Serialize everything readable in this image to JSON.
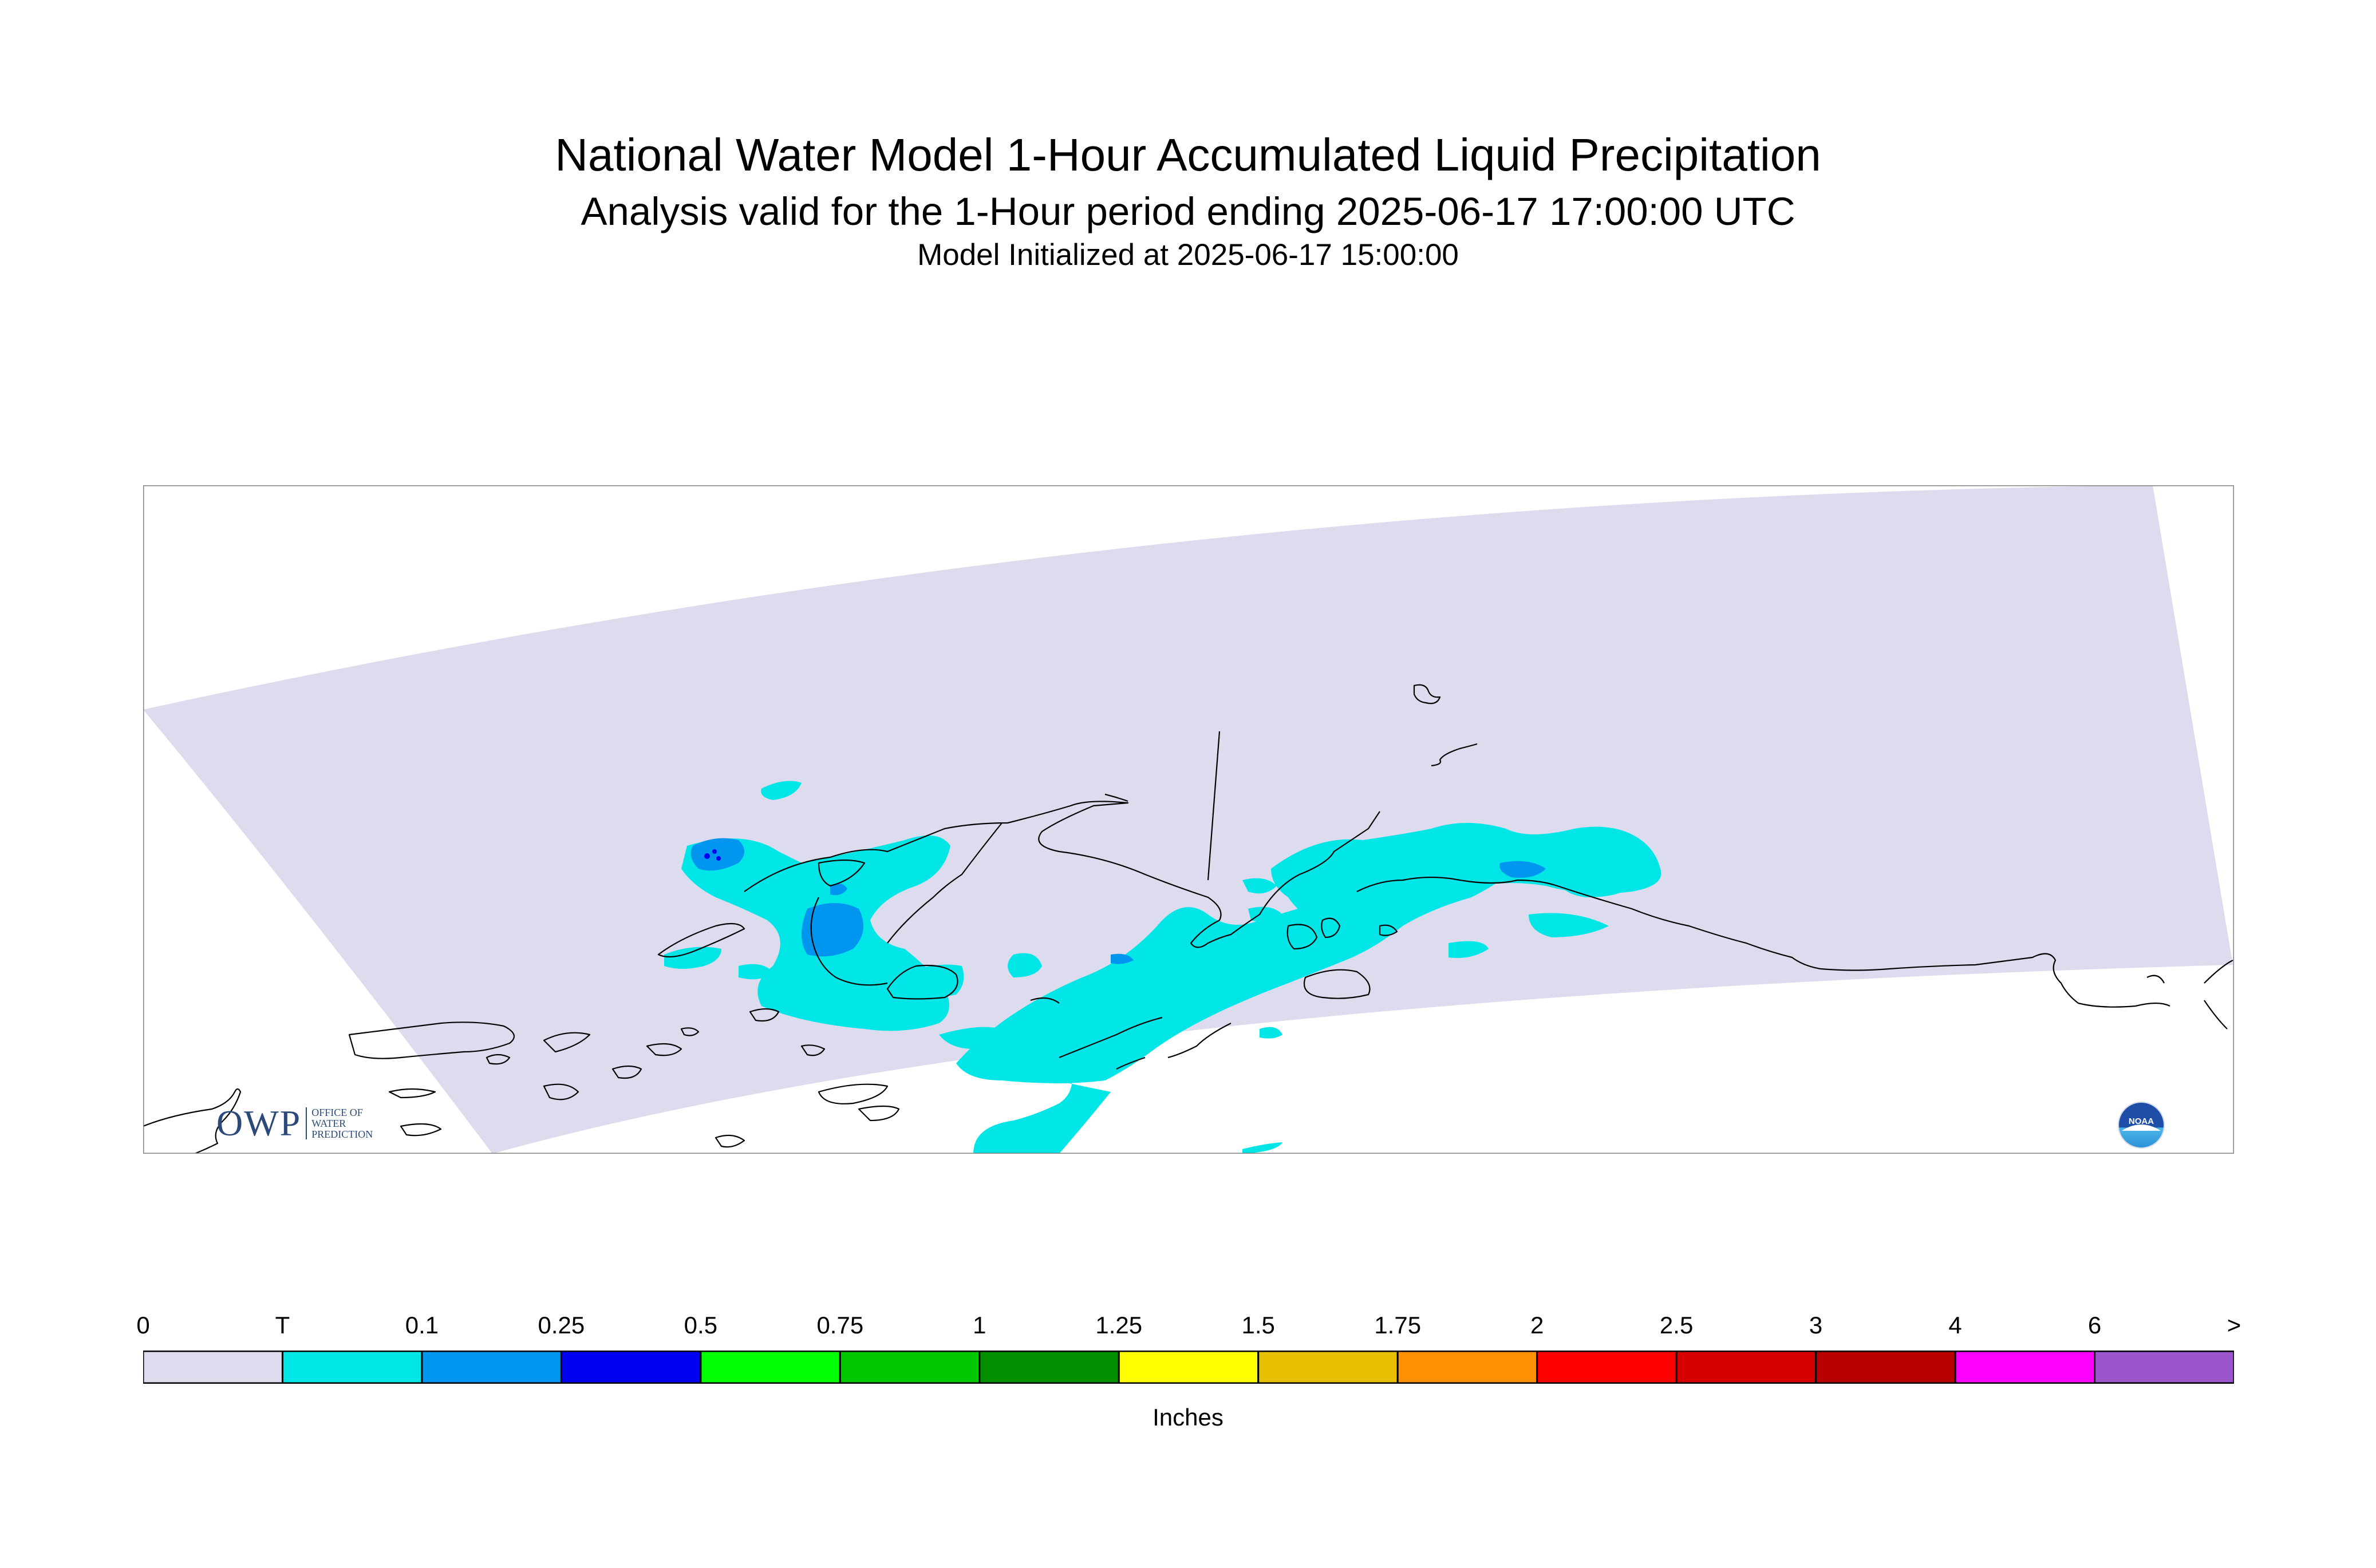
{
  "title": "National Water Model 1-Hour Accumulated Liquid Precipitation",
  "subtitle": "Analysis valid for the 1-Hour period ending 2025-06-17 17:00:00 UTC",
  "initialized": "Model Initialized at 2025-06-17 15:00:00",
  "logos": {
    "owp": {
      "letters": "OWP",
      "lines": [
        "OFFICE OF",
        "WATER",
        "PREDICTION"
      ]
    },
    "noaa": "NOAA"
  },
  "legend": {
    "units": "Inches",
    "labels": [
      "0",
      "T",
      "0.1",
      "0.25",
      "0.5",
      "0.75",
      "1",
      "1.25",
      "1.5",
      "1.75",
      "2",
      "2.5",
      "3",
      "4",
      "6",
      ">"
    ],
    "colors": [
      "#dcdcee",
      "#00e6e6",
      "#0096f0",
      "#0000f0",
      "#00ff00",
      "#00c800",
      "#009000",
      "#ffff00",
      "#e6c000",
      "#ff9000",
      "#ff0000",
      "#d60000",
      "#b80000",
      "#ff00ff",
      "#9955c9"
    ]
  },
  "colors": {
    "domain": "#dcdcee",
    "trace": "#00e6e6",
    "light": "#0096f0",
    "moderate": "#0000f0",
    "coastline": "#000000",
    "frame": "#808080"
  }
}
